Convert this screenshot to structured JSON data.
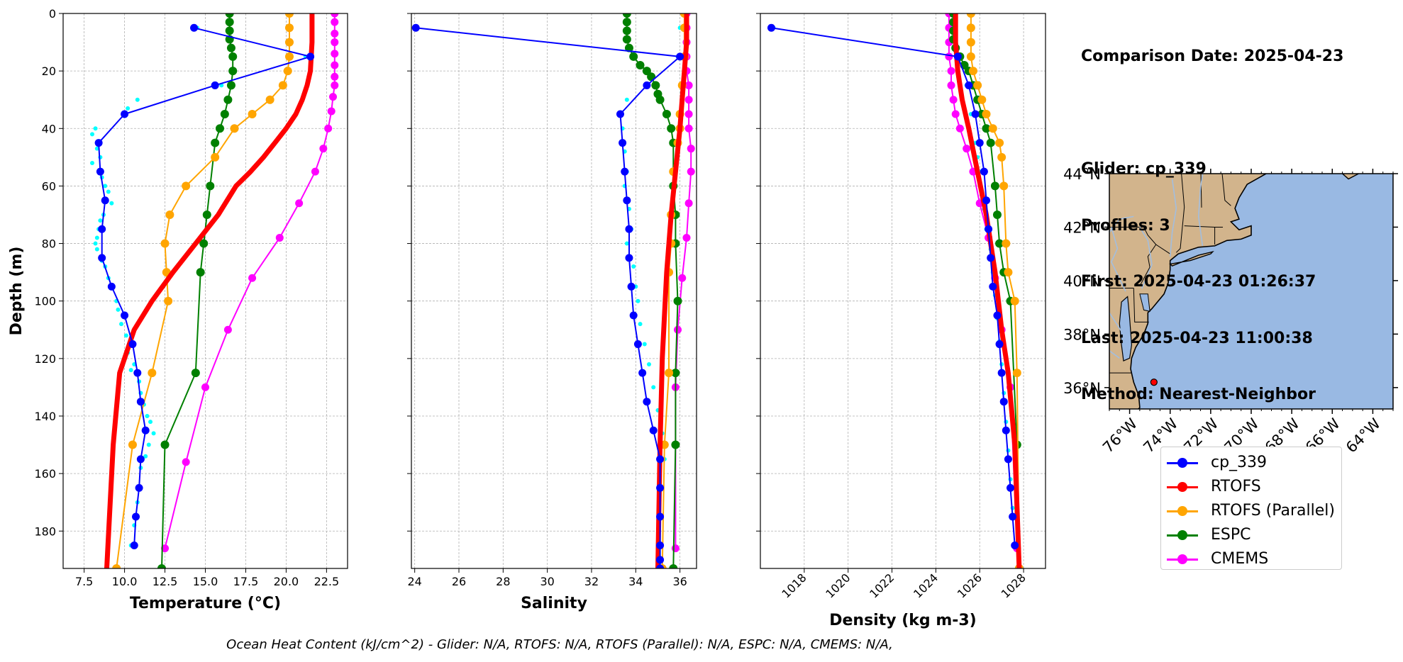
{
  "info": {
    "comparison_date": "Comparison Date: 2025-04-23",
    "glider": "Glider: cp_339",
    "profiles": "Profiles: 3",
    "first": "First: 2025-04-23 01:26:37",
    "last": "Last: 2025-04-23 11:00:38",
    "method": "Method: Nearest-Neighbor"
  },
  "footer": "Ocean Heat Content (kJ/cm^2) - Glider: N/A,  RTOFS: N/A,  RTOFS (Parallel): N/A,  ESPC: N/A,  CMEMS: N/A,",
  "colors": {
    "cp_339": "#0000ff",
    "raw": "#00ffff",
    "RTOFS": "#ff0000",
    "RTOFS (Parallel)": "#ffa500",
    "ESPC": "#008000",
    "CMEMS": "#ff00ff",
    "land": "#d2b48c",
    "ocean": "#99b9e3",
    "rivers": "#a3bede"
  },
  "legend": [
    "cp_339",
    "RTOFS",
    "RTOFS (Parallel)",
    "ESPC",
    "CMEMS"
  ],
  "chart_data": [
    {
      "type": "line",
      "id": "temperature",
      "xlabel": "Temperature (°C)",
      "ylabel": "Depth (m)",
      "xlim": [
        6.2,
        23.8
      ],
      "ylim": [
        193,
        0
      ],
      "xticks": [
        7.5,
        10.0,
        12.5,
        15.0,
        17.5,
        20.0,
        22.5
      ],
      "xtick_labels": [
        "7.5",
        "10.0",
        "12.5",
        "15.0",
        "17.5",
        "20.0",
        "22.5"
      ],
      "yticks": [
        0,
        20,
        40,
        60,
        80,
        100,
        120,
        140,
        160,
        180
      ],
      "grid": true,
      "series": [
        {
          "name": "cp_339",
          "x": [
            14.3,
            21.5,
            15.6,
            10.0,
            8.4,
            8.5,
            8.8,
            8.6,
            8.6,
            9.2,
            10.0,
            10.5,
            10.8,
            11.0,
            11.3,
            11.0,
            10.9,
            10.7,
            10.6
          ],
          "y": [
            5,
            15,
            25,
            35,
            45,
            55,
            65,
            75,
            85,
            95,
            105,
            115,
            125,
            135,
            145,
            155,
            165,
            175,
            185
          ]
        },
        {
          "name": "RTOFS",
          "x": [
            21.6,
            21.6,
            21.5,
            21.3,
            21.0,
            20.6,
            20.0,
            19.3,
            18.6,
            17.8,
            16.9,
            15.8,
            14.4,
            13.0,
            11.7,
            10.6,
            9.7,
            9.3,
            8.9
          ],
          "y": [
            0,
            10,
            20,
            25,
            30,
            35,
            40,
            45,
            50,
            55,
            60,
            70,
            80,
            90,
            100,
            110,
            125,
            150,
            193
          ]
        },
        {
          "name": "RTOFS (Parallel)",
          "x": [
            20.2,
            20.2,
            20.2,
            20.2,
            20.1,
            19.8,
            19.0,
            17.9,
            16.8,
            15.6,
            13.8,
            12.8,
            12.5,
            12.6,
            12.7,
            11.7,
            10.5,
            9.5
          ],
          "y": [
            0,
            5,
            10,
            15,
            20,
            25,
            30,
            35,
            40,
            50,
            60,
            70,
            80,
            90,
            100,
            125,
            150,
            193
          ]
        },
        {
          "name": "ESPC",
          "x": [
            16.5,
            16.5,
            16.5,
            16.5,
            16.6,
            16.7,
            16.7,
            16.6,
            16.4,
            16.2,
            15.9,
            15.6,
            15.3,
            15.1,
            14.9,
            14.7,
            14.4,
            12.5,
            12.3
          ],
          "y": [
            0,
            3,
            6,
            9,
            12,
            15,
            20,
            25,
            30,
            35,
            40,
            45,
            60,
            70,
            80,
            90,
            125,
            150,
            193
          ]
        },
        {
          "name": "CMEMS",
          "x": [
            23.0,
            23.0,
            23.0,
            23.0,
            23.0,
            23.0,
            23.0,
            23.0,
            22.9,
            22.8,
            22.6,
            22.3,
            21.8,
            20.8,
            19.6,
            17.9,
            16.4,
            15.0,
            13.8,
            12.5
          ],
          "y": [
            0,
            3,
            7,
            10,
            14,
            18,
            22,
            25,
            29,
            34,
            40,
            47,
            55,
            66,
            78,
            92,
            110,
            130,
            156,
            186
          ]
        }
      ],
      "raw": {
        "x": [
          14.5,
          21.2,
          16.0,
          10.2,
          10.8,
          8.2,
          8.0,
          8.3,
          8.5,
          8.0,
          8.6,
          8.8,
          9.0,
          9.2,
          8.7,
          8.5,
          8.4,
          8.3,
          8.2,
          8.3,
          8.6,
          8.8,
          9.0,
          9.3,
          9.5,
          9.6,
          9.8,
          10.1,
          10.2,
          10.6,
          10.4,
          10.9,
          11.0,
          11.2,
          11.4,
          11.6,
          11.8,
          11.5,
          11.3,
          11.0,
          11.0,
          10.8,
          10.6,
          10.4
        ],
        "y": [
          5,
          15,
          25,
          33,
          30,
          40,
          42,
          47,
          50,
          52,
          57,
          60,
          62,
          66,
          70,
          72,
          75,
          78,
          80,
          82,
          86,
          88,
          92,
          95,
          100,
          103,
          108,
          112,
          118,
          122,
          124,
          128,
          132,
          136,
          140,
          142,
          146,
          150,
          154,
          158,
          165,
          170,
          178,
          185
        ]
      }
    },
    {
      "type": "line",
      "id": "salinity",
      "xlabel": "Salinity",
      "ylabel": "",
      "xlim": [
        23.85,
        36.75
      ],
      "ylim": [
        193,
        0
      ],
      "xticks": [
        24,
        26,
        28,
        30,
        32,
        34,
        36
      ],
      "xtick_labels": [
        "24",
        "26",
        "28",
        "30",
        "32",
        "34",
        "36"
      ],
      "yticks": [
        0,
        20,
        40,
        60,
        80,
        100,
        120,
        140,
        160,
        180
      ],
      "grid": true,
      "series": [
        {
          "name": "cp_339",
          "x": [
            24.05,
            36.0,
            34.5,
            33.3,
            33.4,
            33.5,
            33.6,
            33.7,
            33.7,
            33.8,
            33.9,
            34.1,
            34.3,
            34.5,
            34.8,
            35.1,
            35.1,
            35.1,
            35.1,
            35.1,
            35.1
          ],
          "y": [
            5,
            15,
            25,
            35,
            45,
            55,
            65,
            75,
            85,
            95,
            105,
            115,
            125,
            135,
            145,
            155,
            165,
            175,
            185,
            190,
            193
          ]
        },
        {
          "name": "RTOFS",
          "x": [
            36.3,
            36.3,
            36.2,
            36.1,
            36.0,
            35.8,
            35.6,
            35.4,
            35.2,
            35.1,
            35.0
          ],
          "y": [
            0,
            10,
            20,
            30,
            40,
            55,
            70,
            90,
            120,
            150,
            193
          ]
        },
        {
          "name": "RTOFS (Parallel)",
          "x": [
            36.2,
            36.2,
            36.2,
            36.1,
            36.0,
            36.0,
            35.9,
            35.7,
            35.6,
            35.6,
            35.5,
            35.5,
            35.3,
            35.2
          ],
          "y": [
            0,
            5,
            15,
            25,
            35,
            40,
            45,
            55,
            70,
            80,
            90,
            125,
            150,
            193
          ]
        },
        {
          "name": "ESPC",
          "x": [
            33.6,
            33.6,
            33.6,
            33.6,
            33.7,
            33.9,
            34.2,
            34.5,
            34.7,
            34.9,
            35.0,
            35.1,
            35.4,
            35.6,
            35.7,
            35.7,
            35.8,
            35.8,
            35.9,
            35.8,
            35.8,
            35.7
          ],
          "y": [
            0,
            3,
            6,
            9,
            12,
            15,
            18,
            20,
            22,
            25,
            28,
            30,
            35,
            40,
            45,
            60,
            70,
            80,
            100,
            125,
            150,
            193
          ]
        },
        {
          "name": "CMEMS",
          "x": [
            36.3,
            36.3,
            36.3,
            36.3,
            36.3,
            36.4,
            36.4,
            36.4,
            36.4,
            36.5,
            36.5,
            36.4,
            36.3,
            36.1,
            35.9,
            35.8,
            35.8
          ],
          "y": [
            0,
            5,
            10,
            15,
            20,
            25,
            30,
            35,
            40,
            47,
            55,
            66,
            78,
            92,
            110,
            130,
            186
          ]
        }
      ],
      "raw": {
        "x": [
          24.1,
          35.9,
          34.8,
          33.6,
          33.4,
          33.5,
          33.6,
          33.5,
          33.7,
          33.8,
          33.6,
          33.9,
          34.0,
          34.1,
          34.2,
          34.4,
          34.6,
          34.8,
          35.0,
          35.2,
          35.3,
          35.2,
          36.0,
          36.2
        ],
        "y": [
          5,
          15,
          22,
          30,
          40,
          48,
          55,
          60,
          68,
          75,
          80,
          88,
          95,
          100,
          108,
          115,
          122,
          130,
          138,
          146,
          155,
          165,
          5,
          0
        ]
      }
    },
    {
      "type": "line",
      "id": "density",
      "xlabel": "Density (kg m-3)",
      "ylabel": "",
      "xlim": [
        1016.0,
        1029.0
      ],
      "ylim": [
        193,
        0
      ],
      "xticks": [
        1018,
        1020,
        1022,
        1024,
        1026,
        1028
      ],
      "xtick_labels": [
        "1018",
        "1020",
        "1022",
        "1024",
        "1026",
        "1028"
      ],
      "yticks": [
        0,
        20,
        40,
        60,
        80,
        100,
        120,
        140,
        160,
        180
      ],
      "grid": true,
      "series": [
        {
          "name": "cp_339",
          "x": [
            1016.5,
            1025.0,
            1025.5,
            1025.8,
            1026.0,
            1026.2,
            1026.3,
            1026.4,
            1026.5,
            1026.6,
            1026.8,
            1026.9,
            1027.0,
            1027.1,
            1027.2,
            1027.3,
            1027.4,
            1027.5,
            1027.6
          ],
          "y": [
            5,
            15,
            25,
            35,
            45,
            55,
            65,
            75,
            85,
            95,
            105,
            115,
            125,
            135,
            145,
            155,
            165,
            175,
            185
          ]
        },
        {
          "name": "RTOFS",
          "x": [
            1024.9,
            1024.9,
            1025.0,
            1025.2,
            1025.5,
            1025.9,
            1026.3,
            1026.7,
            1027.0,
            1027.3,
            1027.6,
            1027.8
          ],
          "y": [
            0,
            10,
            20,
            30,
            40,
            55,
            70,
            90,
            110,
            125,
            150,
            193
          ]
        },
        {
          "name": "RTOFS (Parallel)",
          "x": [
            1025.6,
            1025.6,
            1025.6,
            1025.6,
            1025.7,
            1025.9,
            1026.1,
            1026.3,
            1026.6,
            1026.9,
            1027.0,
            1027.1,
            1027.2,
            1027.3,
            1027.6,
            1027.7,
            1027.8
          ],
          "y": [
            0,
            5,
            10,
            15,
            20,
            25,
            30,
            35,
            40,
            45,
            50,
            60,
            80,
            90,
            100,
            125,
            193
          ]
        },
        {
          "name": "ESPC",
          "x": [
            1024.8,
            1024.8,
            1024.8,
            1024.8,
            1024.9,
            1025.1,
            1025.3,
            1025.5,
            1025.7,
            1025.9,
            1026.1,
            1026.3,
            1026.5,
            1026.7,
            1026.8,
            1026.9,
            1027.1,
            1027.4,
            1027.7,
            1027.8
          ],
          "y": [
            0,
            3,
            6,
            9,
            12,
            15,
            18,
            20,
            25,
            30,
            35,
            40,
            45,
            60,
            70,
            80,
            90,
            100,
            150,
            193
          ]
        },
        {
          "name": "CMEMS",
          "x": [
            1024.6,
            1024.6,
            1024.6,
            1024.6,
            1024.7,
            1024.7,
            1024.8,
            1024.9,
            1025.1,
            1025.4,
            1025.7,
            1026.0,
            1026.4,
            1026.7,
            1027.0,
            1027.4,
            1027.7
          ],
          "y": [
            0,
            5,
            10,
            15,
            20,
            25,
            30,
            35,
            40,
            47,
            55,
            66,
            78,
            92,
            110,
            130,
            186
          ]
        }
      ],
      "raw": {
        "x": [
          1016.6,
          1025.1,
          1025.4,
          1025.6,
          1025.8,
          1025.9,
          1026.0,
          1026.1,
          1026.2,
          1026.3,
          1026.5,
          1026.6,
          1026.7,
          1026.8,
          1026.9,
          1027.0,
          1027.1,
          1027.2,
          1027.3,
          1027.4,
          1027.5
        ],
        "y": [
          5,
          15,
          25,
          35,
          45,
          50,
          55,
          62,
          68,
          75,
          82,
          90,
          98,
          106,
          114,
          122,
          132,
          142,
          152,
          162,
          172
        ]
      }
    },
    {
      "type": "map",
      "id": "location-map",
      "lat_range": [
        35.2,
        44.0
      ],
      "lon_range": [
        -77.0,
        -63.0
      ],
      "lat_ticks": [
        36,
        38,
        40,
        42,
        44
      ],
      "lat_tick_labels": [
        "36°N",
        "38°N",
        "40°N",
        "42°N",
        "44°N"
      ],
      "lon_ticks": [
        -76,
        -74,
        -72,
        -70,
        -68,
        -66,
        -64
      ],
      "lon_tick_labels": [
        "76°W",
        "74°W",
        "72°W",
        "70°W",
        "68°W",
        "66°W",
        "64°W"
      ],
      "glider_position": {
        "lon": -74.8,
        "lat": 36.2
      }
    }
  ]
}
